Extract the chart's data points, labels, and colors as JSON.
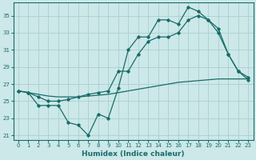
{
  "xlabel": "Humidex (Indice chaleur)",
  "bg_color": "#cce8e8",
  "grid_color": "#aacfcf",
  "line_color": "#1a6b6b",
  "line1_x": [
    0,
    1,
    2,
    3,
    4,
    5,
    6,
    7,
    8,
    9,
    10,
    11,
    12,
    13,
    14,
    15,
    16,
    17,
    18,
    19,
    20,
    21,
    22,
    23
  ],
  "line1_y": [
    26.2,
    26.0,
    24.5,
    24.5,
    24.5,
    22.5,
    22.2,
    21.0,
    23.5,
    23.0,
    26.5,
    31.0,
    32.5,
    32.5,
    34.5,
    34.5,
    34.0,
    36.0,
    35.5,
    34.5,
    33.0,
    30.5,
    28.5,
    27.8
  ],
  "line2_x": [
    0,
    1,
    2,
    3,
    4,
    5,
    6,
    7,
    8,
    9,
    10,
    11,
    12,
    13,
    14,
    15,
    16,
    17,
    18,
    19,
    20,
    21,
    22,
    23
  ],
  "line2_y": [
    26.2,
    26.0,
    25.8,
    25.6,
    25.5,
    25.5,
    25.5,
    25.6,
    25.7,
    25.8,
    26.0,
    26.2,
    26.4,
    26.6,
    26.8,
    27.0,
    27.2,
    27.3,
    27.4,
    27.5,
    27.6,
    27.6,
    27.6,
    27.6
  ],
  "line3_x": [
    0,
    1,
    2,
    3,
    4,
    5,
    6,
    7,
    8,
    9,
    10,
    11,
    12,
    13,
    14,
    15,
    16,
    17,
    18,
    19,
    20,
    21,
    22,
    23
  ],
  "line3_y": [
    26.2,
    26.0,
    25.5,
    25.0,
    25.0,
    25.2,
    25.5,
    25.8,
    26.0,
    26.2,
    28.5,
    28.5,
    30.5,
    32.0,
    32.5,
    32.5,
    33.0,
    34.5,
    35.0,
    34.5,
    33.5,
    30.5,
    28.5,
    27.5
  ],
  "xlim": [
    -0.5,
    23.5
  ],
  "ylim": [
    20.5,
    36.5
  ],
  "yticks": [
    21,
    23,
    25,
    27,
    29,
    31,
    33,
    35
  ],
  "xticks": [
    0,
    1,
    2,
    3,
    4,
    5,
    6,
    7,
    8,
    9,
    10,
    11,
    12,
    13,
    14,
    15,
    16,
    17,
    18,
    19,
    20,
    21,
    22,
    23
  ],
  "tick_fontsize": 5.0,
  "xlabel_fontsize": 6.5
}
